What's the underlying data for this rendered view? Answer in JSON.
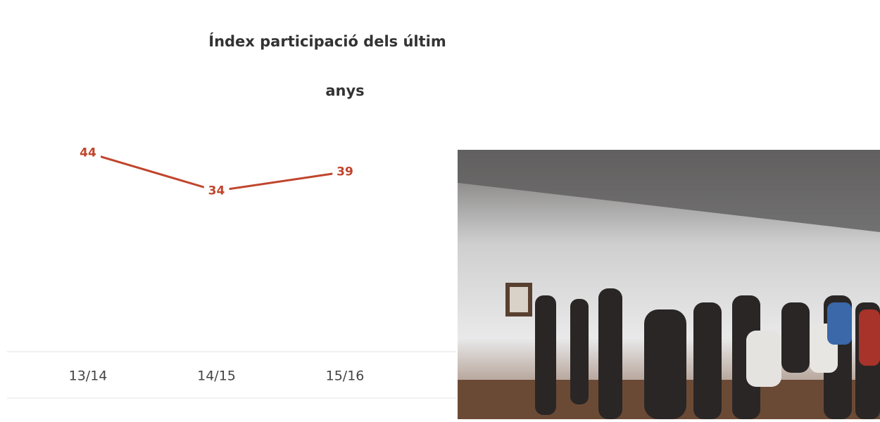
{
  "chart_data": {
    "type": "line",
    "title": "Índex participació dels últim",
    "subtitle": "anys",
    "categories": [
      "13/14",
      "14/15",
      "15/16"
    ],
    "series": [
      {
        "name": null,
        "color": "#c0452c",
        "values": [
          44,
          34,
          39
        ]
      }
    ]
  }
}
